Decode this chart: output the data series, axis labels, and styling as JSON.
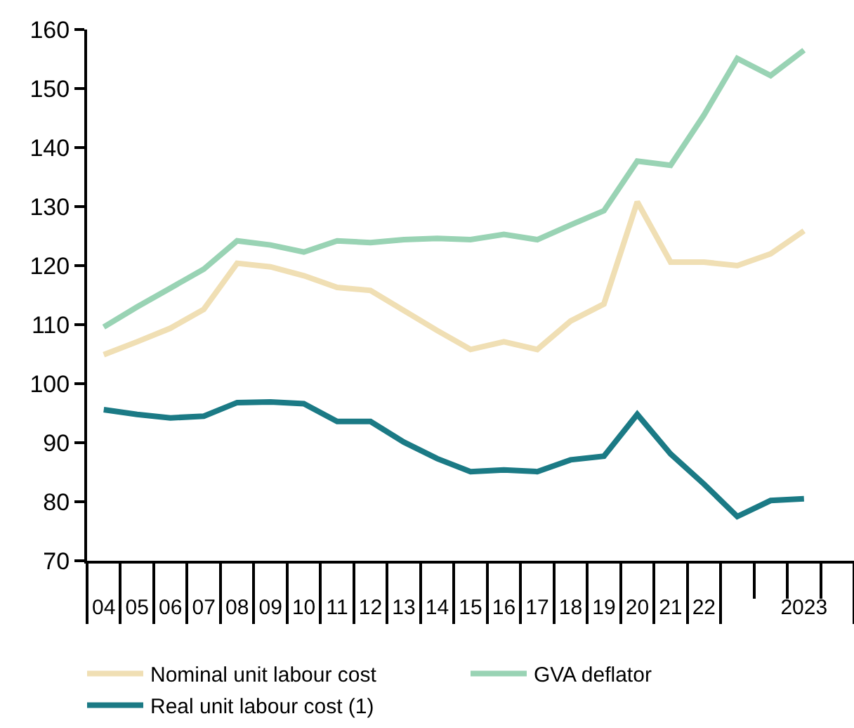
{
  "chart_data": {
    "type": "line",
    "categories": [
      "04",
      "05",
      "06",
      "07",
      "08",
      "09",
      "10",
      "11",
      "12",
      "13",
      "14",
      "15",
      "16",
      "17",
      "18",
      "19",
      "20",
      "21",
      "22",
      null,
      null,
      "2023",
      null
    ],
    "series": [
      {
        "name": "Nominal unit labour cost",
        "color": "#f0dfb4",
        "values": [
          104.9,
          107.1,
          109.4,
          112.6,
          120.4,
          119.8,
          118.3,
          116.3,
          115.8,
          112.4,
          109,
          105.8,
          107.1,
          105.8,
          110.6,
          113.5,
          130.8,
          120.6,
          120.6,
          120.0,
          122.0,
          125.9,
          null
        ]
      },
      {
        "name": "GVA deflator",
        "color": "#99d3b4",
        "values": [
          109.6,
          113,
          116.2,
          119.4,
          124.2,
          123.5,
          122.3,
          124.2,
          123.9,
          124.4,
          124.6,
          124.4,
          125.3,
          124.4,
          126.9,
          129.3,
          137.7,
          137.0,
          145.5,
          155.1,
          152.2,
          156.5,
          null
        ]
      },
      {
        "name": "Real unit labour cost (1)",
        "color": "#1b7a85",
        "values": [
          95.6,
          94.8,
          94.2,
          94.5,
          96.8,
          96.9,
          96.6,
          93.6,
          93.6,
          90.1,
          87.3,
          85.1,
          85.4,
          85.1,
          87.1,
          87.7,
          94.8,
          88.1,
          83,
          77.5,
          80.2,
          80.5,
          null
        ]
      }
    ],
    "ylim": [
      70,
      160
    ],
    "yticks": [
      70,
      80,
      90,
      100,
      110,
      120,
      130,
      140,
      150,
      160
    ],
    "grid": false,
    "legend": "bottom",
    "marker": "none",
    "line_style": "solid"
  }
}
